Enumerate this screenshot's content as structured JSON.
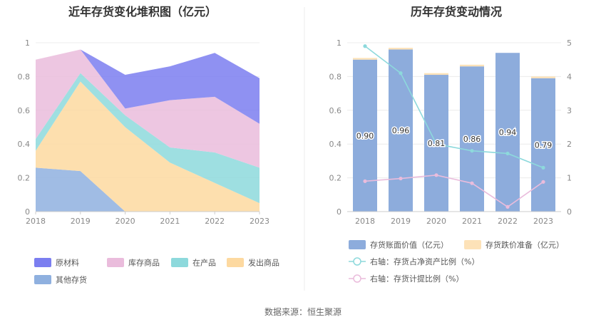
{
  "source_text": "数据来源：恒生聚源",
  "chart_data": [
    {
      "type": "area",
      "title": "近年存货变化堆积图（亿元）",
      "categories": [
        "2018",
        "2019",
        "2020",
        "2021",
        "2022",
        "2023"
      ],
      "ylim": [
        0,
        1
      ],
      "yticks": [
        "0",
        "0.2",
        "0.4",
        "0.6",
        "0.8",
        "1"
      ],
      "stacked": true,
      "grid": true,
      "legend_position": "bottom",
      "series": [
        {
          "name": "其他存货",
          "color": "#8fb0df",
          "values": [
            0.26,
            0.24,
            0.0,
            0.0,
            0.0,
            0.0
          ]
        },
        {
          "name": "发出商品",
          "color": "#fdd9a0",
          "values": [
            0.1,
            0.53,
            0.5,
            0.29,
            0.17,
            0.05
          ]
        },
        {
          "name": "在产品",
          "color": "#8dd9dc",
          "values": [
            0.07,
            0.05,
            0.07,
            0.09,
            0.18,
            0.21
          ]
        },
        {
          "name": "库存商品",
          "color": "#eabcdc",
          "values": [
            0.47,
            0.14,
            0.04,
            0.28,
            0.33,
            0.26
          ]
        },
        {
          "name": "原材料",
          "color": "#7b7ef0",
          "values": [
            0.0,
            0.0,
            0.2,
            0.2,
            0.26,
            0.27
          ]
        }
      ]
    },
    {
      "type": "bar",
      "title": "历年存货变动情况",
      "categories": [
        "2018",
        "2019",
        "2020",
        "2021",
        "2022",
        "2023"
      ],
      "ylim": [
        0,
        1
      ],
      "yticks": [
        "0",
        "0.2",
        "0.4",
        "0.6",
        "0.8",
        "1"
      ],
      "y2lim": [
        0,
        5
      ],
      "y2ticks": [
        "0",
        "1",
        "2",
        "3",
        "4",
        "5"
      ],
      "grid": true,
      "legend_position": "bottom",
      "bar_series": [
        {
          "name": "存货账面价值（亿元）",
          "color": "#8dacdc",
          "values": [
            0.9,
            0.96,
            0.81,
            0.86,
            0.94,
            0.79
          ],
          "labels": [
            "0.90",
            "0.96",
            "0.81",
            "0.86",
            "0.94",
            "0.79"
          ]
        },
        {
          "name": "存货跌价准备（亿元）",
          "color": "#fde2b8",
          "values": [
            0.01,
            0.01,
            0.01,
            0.01,
            0.0,
            0.01
          ]
        }
      ],
      "line_series": [
        {
          "name": "右轴：存货占净资产比例（%）",
          "color": "#8dd9dc",
          "axis": "right",
          "values": [
            4.9,
            4.1,
            2.0,
            1.8,
            1.72,
            1.3
          ]
        },
        {
          "name": "右轴：存货计提比例（%）",
          "color": "#eabcdc",
          "axis": "right",
          "values": [
            0.9,
            0.98,
            1.08,
            0.84,
            0.14,
            0.88
          ]
        }
      ]
    }
  ]
}
